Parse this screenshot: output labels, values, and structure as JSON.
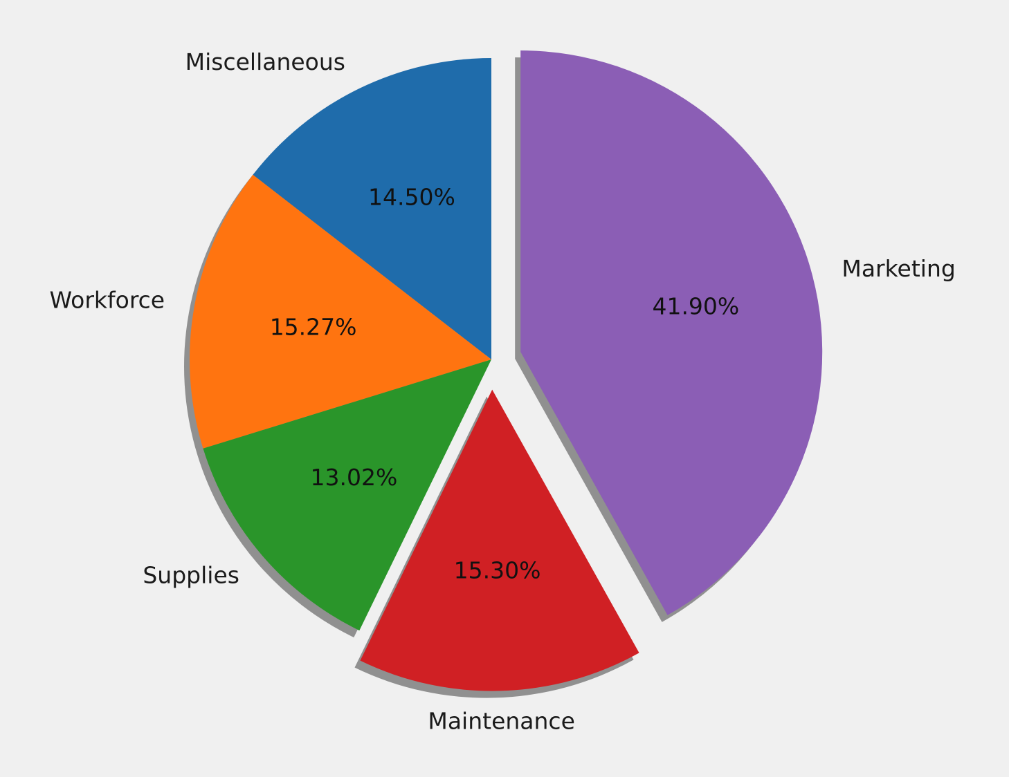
{
  "chart_data": {
    "type": "pie",
    "slices": [
      {
        "label": "Miscellaneous",
        "value": 14.5,
        "pct_label": "14.50%",
        "color": "#1f6cab",
        "exploded": false
      },
      {
        "label": "Workforce",
        "value": 15.27,
        "pct_label": "15.27%",
        "color": "#ff7410",
        "exploded": false
      },
      {
        "label": "Supplies",
        "value": 13.02,
        "pct_label": "13.02%",
        "color": "#2a952a",
        "exploded": false
      },
      {
        "label": "Maintenance",
        "value": 15.3,
        "pct_label": "15.30%",
        "color": "#d02024",
        "exploded": true
      },
      {
        "label": "Marketing",
        "value": 41.9,
        "pct_label": "41.90%",
        "color": "#8b5eb5",
        "exploded": true
      }
    ],
    "start_angle": 90,
    "direction": "counterclockwise",
    "shadow": true,
    "background": "#f0f0f0"
  }
}
